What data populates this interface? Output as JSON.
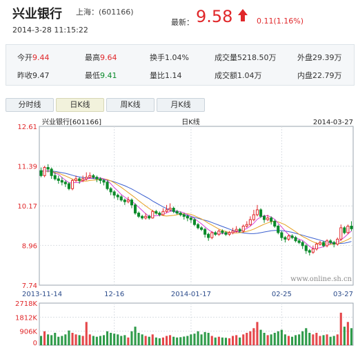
{
  "header": {
    "name": "兴业银行",
    "exchange": "上海：",
    "code": "(601166)",
    "timestamp": "2014-3-28 11:15:22",
    "last_label": "最新：",
    "last_price": "9.58",
    "change": "0.11(1.16%)"
  },
  "quote": {
    "open_label": "今开",
    "open": "9.44",
    "high_label": "最高",
    "high": "9.64",
    "turnover_label": "换手",
    "turnover": "1.04%",
    "volume_label": "成交量",
    "volume": "5218.50万",
    "outer_label": "外盘",
    "outer": "29.39万",
    "prevclose_label": "昨收",
    "prevclose": "9.47",
    "low_label": "最低",
    "low": "9.41",
    "volratio_label": "量比",
    "volratio": "1.14",
    "amount_label": "成交额",
    "amount": "1.04万",
    "inner_label": "内盘",
    "inner": "22.79万"
  },
  "tabs": [
    {
      "label": "分时线",
      "active": false
    },
    {
      "label": "日K线",
      "active": true
    },
    {
      "label": "周K线",
      "active": false
    },
    {
      "label": "月K线",
      "active": false
    }
  ],
  "colors": {
    "up": "#e0272a",
    "down": "#0a8a2a",
    "ma5": "#d63fd6",
    "ma10": "#e6a020",
    "ma20": "#3a5fcf"
  },
  "chart_data": {
    "type": "candlestick",
    "title_left": "兴业银行[601166]",
    "title_center": "日K线",
    "title_right": "2014-03-27",
    "watermark": "www.online.sh.cn",
    "y_ticks": [
      "12.61",
      "11.39",
      "10.17",
      "8.96",
      "7.74"
    ],
    "y_tick_values": [
      12.61,
      11.39,
      10.17,
      8.96,
      7.74
    ],
    "ylim": [
      7.74,
      12.61
    ],
    "x_ticks": [
      "2013-11-14",
      "12-16",
      "2014-01-17",
      "02-25",
      "03-27"
    ],
    "x_tick_index": [
      0,
      21,
      43,
      69,
      89
    ],
    "vol_ticks": [
      "2718K",
      "1812K",
      "906K",
      "0"
    ],
    "vol_tick_values": [
      2718,
      1812,
      906,
      0
    ],
    "candles": [
      [
        11.25,
        11.1,
        11.35,
        11.05,
        600
      ],
      [
        11.1,
        11.35,
        11.4,
        11.05,
        900
      ],
      [
        11.35,
        11.3,
        11.45,
        11.2,
        700
      ],
      [
        11.3,
        11.1,
        11.35,
        11.0,
        650
      ],
      [
        11.1,
        11.0,
        11.2,
        10.95,
        800
      ],
      [
        11.0,
        10.95,
        11.1,
        10.85,
        550
      ],
      [
        10.95,
        10.9,
        11.05,
        10.8,
        600
      ],
      [
        10.9,
        10.85,
        10.95,
        10.75,
        700
      ],
      [
        10.85,
        10.7,
        10.9,
        10.65,
        950
      ],
      [
        10.7,
        10.95,
        11.0,
        10.65,
        800
      ],
      [
        10.95,
        11.0,
        11.1,
        10.9,
        700
      ],
      [
        11.0,
        10.95,
        11.05,
        10.85,
        650
      ],
      [
        10.95,
        11.0,
        11.1,
        10.9,
        600
      ],
      [
        11.0,
        11.05,
        11.2,
        10.95,
        1500
      ],
      [
        11.05,
        11.1,
        11.2,
        11.0,
        700
      ],
      [
        11.1,
        11.05,
        11.15,
        11.0,
        600
      ],
      [
        11.05,
        11.0,
        11.1,
        10.9,
        550
      ],
      [
        11.0,
        10.95,
        11.05,
        10.85,
        600
      ],
      [
        10.95,
        10.9,
        11.0,
        10.8,
        650
      ],
      [
        10.9,
        10.7,
        10.95,
        10.65,
        900
      ],
      [
        10.7,
        10.6,
        10.75,
        10.5,
        800
      ],
      [
        10.6,
        10.5,
        10.65,
        10.4,
        750
      ],
      [
        10.5,
        10.45,
        10.55,
        10.35,
        700
      ],
      [
        10.45,
        10.35,
        10.5,
        10.3,
        600
      ],
      [
        10.35,
        10.3,
        10.4,
        10.2,
        650
      ],
      [
        10.3,
        10.35,
        10.45,
        10.25,
        500
      ],
      [
        10.35,
        10.2,
        10.4,
        10.1,
        900
      ],
      [
        10.2,
        9.95,
        10.25,
        9.9,
        1200
      ],
      [
        9.95,
        9.85,
        10.0,
        9.8,
        800
      ],
      [
        9.85,
        9.8,
        9.9,
        9.75,
        700
      ],
      [
        9.8,
        9.85,
        9.95,
        9.75,
        600
      ],
      [
        9.85,
        9.8,
        9.9,
        9.75,
        550
      ],
      [
        9.8,
        10.0,
        10.05,
        9.78,
        700
      ],
      [
        10.0,
        9.95,
        10.05,
        9.9,
        500
      ],
      [
        9.95,
        9.9,
        10.0,
        9.85,
        450
      ],
      [
        9.9,
        10.0,
        10.1,
        9.88,
        500
      ],
      [
        10.0,
        10.05,
        10.2,
        9.95,
        600
      ],
      [
        10.05,
        10.1,
        10.25,
        10.0,
        650
      ],
      [
        10.1,
        10.0,
        10.15,
        9.95,
        550
      ],
      [
        10.0,
        9.95,
        10.05,
        9.9,
        500
      ],
      [
        9.95,
        9.9,
        10.0,
        9.85,
        520
      ],
      [
        9.9,
        9.85,
        9.95,
        9.75,
        560
      ],
      [
        9.85,
        9.8,
        9.9,
        9.7,
        600
      ],
      [
        9.8,
        9.75,
        9.85,
        9.65,
        700
      ],
      [
        9.75,
        9.6,
        9.8,
        9.55,
        750
      ],
      [
        9.6,
        9.5,
        9.65,
        9.45,
        900
      ],
      [
        9.5,
        9.45,
        9.55,
        9.4,
        700
      ],
      [
        9.45,
        9.3,
        9.5,
        9.2,
        850
      ],
      [
        9.3,
        9.2,
        9.35,
        9.1,
        800
      ],
      [
        9.2,
        9.35,
        9.4,
        9.15,
        600
      ],
      [
        9.35,
        9.3,
        9.4,
        9.25,
        500
      ],
      [
        9.3,
        9.4,
        9.45,
        9.25,
        550
      ],
      [
        9.4,
        9.35,
        9.45,
        9.3,
        500
      ],
      [
        9.35,
        9.3,
        9.4,
        9.25,
        480
      ],
      [
        9.3,
        9.35,
        9.4,
        9.25,
        450
      ],
      [
        9.35,
        9.4,
        9.5,
        9.3,
        600
      ],
      [
        9.4,
        9.45,
        9.55,
        9.35,
        650
      ],
      [
        9.45,
        9.4,
        9.5,
        9.35,
        500
      ],
      [
        9.4,
        9.55,
        9.6,
        9.35,
        700
      ],
      [
        9.55,
        9.6,
        9.7,
        9.5,
        800
      ],
      [
        9.6,
        9.75,
        9.85,
        9.55,
        900
      ],
      [
        9.75,
        9.9,
        10.05,
        9.7,
        1100
      ],
      [
        9.9,
        10.05,
        10.2,
        9.85,
        1500
      ],
      [
        10.05,
        9.85,
        10.1,
        9.8,
        1000
      ],
      [
        9.85,
        9.75,
        9.9,
        9.65,
        800
      ],
      [
        9.75,
        9.8,
        9.9,
        9.7,
        650
      ],
      [
        9.8,
        9.7,
        9.85,
        9.6,
        700
      ],
      [
        9.7,
        9.55,
        9.75,
        9.5,
        800
      ],
      [
        9.55,
        9.35,
        9.6,
        9.3,
        900
      ],
      [
        9.35,
        9.2,
        9.4,
        9.1,
        1000
      ],
      [
        9.2,
        9.15,
        9.25,
        9.05,
        700
      ],
      [
        9.15,
        9.25,
        9.3,
        9.1,
        600
      ],
      [
        9.25,
        9.2,
        9.3,
        9.15,
        550
      ],
      [
        9.2,
        9.1,
        9.25,
        9.05,
        650
      ],
      [
        9.1,
        9.05,
        9.15,
        9.0,
        700
      ],
      [
        9.05,
        8.95,
        9.1,
        8.85,
        900
      ],
      [
        8.95,
        8.8,
        9.0,
        8.7,
        1100
      ],
      [
        8.8,
        8.75,
        8.85,
        8.65,
        800
      ],
      [
        8.75,
        8.85,
        8.95,
        8.7,
        700
      ],
      [
        8.85,
        9.0,
        9.05,
        8.8,
        800
      ],
      [
        9.0,
        9.05,
        9.1,
        8.95,
        600
      ],
      [
        9.05,
        8.95,
        9.1,
        8.9,
        650
      ],
      [
        8.95,
        9.1,
        9.15,
        8.9,
        700
      ],
      [
        9.1,
        9.05,
        9.15,
        9.0,
        550
      ],
      [
        9.05,
        9.0,
        9.1,
        8.9,
        600
      ],
      [
        9.0,
        9.15,
        9.2,
        8.95,
        700
      ],
      [
        9.15,
        9.5,
        9.6,
        9.1,
        2100
      ],
      [
        9.5,
        9.35,
        9.55,
        9.3,
        1200
      ],
      [
        9.35,
        9.55,
        9.6,
        9.3,
        1500
      ],
      [
        9.55,
        9.47,
        9.7,
        9.4,
        1100
      ]
    ],
    "ma5": [
      11.25,
      11.22,
      11.25,
      11.22,
      11.17,
      11.14,
      11.04,
      10.96,
      10.88,
      10.88,
      10.89,
      10.89,
      10.94,
      10.99,
      11.02,
      11.03,
      11.03,
      11.03,
      11.0,
      10.95,
      10.85,
      10.73,
      10.63,
      10.52,
      10.44,
      10.37,
      10.31,
      10.23,
      10.13,
      10.03,
      9.93,
      9.85,
      9.86,
      9.87,
      9.88,
      9.92,
      9.96,
      10.0,
      10.02,
      10.01,
      9.99,
      9.96,
      9.9,
      9.85,
      9.78,
      9.7,
      9.62,
      9.53,
      9.44,
      9.37,
      9.33,
      9.31,
      9.32,
      9.34,
      9.34,
      9.36,
      9.38,
      9.39,
      9.43,
      9.48,
      9.55,
      9.64,
      9.76,
      9.83,
      9.87,
      9.87,
      9.83,
      9.76,
      9.64,
      9.52,
      9.4,
      9.29,
      9.23,
      9.18,
      9.15,
      9.11,
      9.02,
      8.93,
      8.86,
      8.87,
      8.89,
      8.92,
      8.97,
      9.02,
      9.03,
      9.05,
      9.13,
      9.21,
      9.31,
      9.4
    ],
    "ma10": [
      11.25,
      11.23,
      11.24,
      11.23,
      11.2,
      11.18,
      11.13,
      11.09,
      11.04,
      10.99,
      10.97,
      10.94,
      10.93,
      10.93,
      10.95,
      10.96,
      10.97,
      10.99,
      11.0,
      10.98,
      10.94,
      10.88,
      10.81,
      10.74,
      10.66,
      10.58,
      10.5,
      10.42,
      10.33,
      10.25,
      10.17,
      10.09,
      10.02,
      9.96,
      9.91,
      9.87,
      9.86,
      9.87,
      9.88,
      9.9,
      9.92,
      9.93,
      9.93,
      9.91,
      9.87,
      9.82,
      9.77,
      9.71,
      9.64,
      9.58,
      9.52,
      9.46,
      9.42,
      9.38,
      9.36,
      9.34,
      9.34,
      9.35,
      9.37,
      9.39,
      9.42,
      9.46,
      9.51,
      9.56,
      9.61,
      9.65,
      9.68,
      9.7,
      9.68,
      9.64,
      9.59,
      9.52,
      9.45,
      9.38,
      9.3,
      9.23,
      9.18,
      9.12,
      9.07,
      9.03,
      9.0,
      8.99,
      8.99,
      8.99,
      9.0,
      9.01,
      9.05,
      9.09,
      9.14,
      9.2
    ],
    "ma20": [
      11.25,
      11.24,
      11.24,
      11.24,
      11.23,
      11.21,
      11.19,
      11.17,
      11.14,
      11.11,
      11.08,
      11.06,
      11.04,
      11.03,
      11.02,
      11.01,
      11.0,
      10.99,
      10.98,
      10.96,
      10.94,
      10.91,
      10.87,
      10.83,
      10.79,
      10.74,
      10.69,
      10.63,
      10.57,
      10.51,
      10.45,
      10.39,
      10.32,
      10.26,
      10.2,
      10.14,
      10.09,
      10.04,
      10.0,
      9.96,
      9.93,
      9.9,
      9.87,
      9.85,
      9.82,
      9.79,
      9.76,
      9.73,
      9.7,
      9.66,
      9.62,
      9.58,
      9.54,
      9.5,
      9.46,
      9.42,
      9.39,
      9.36,
      9.34,
      9.33,
      9.32,
      9.32,
      9.33,
      9.35,
      9.37,
      9.39,
      9.41,
      9.42,
      9.42,
      9.41,
      9.4,
      9.38,
      9.36,
      9.33,
      9.3,
      9.27,
      9.24,
      9.21,
      9.18,
      9.15,
      9.12,
      9.09,
      9.07,
      9.05,
      9.03,
      9.02,
      9.02,
      9.03,
      9.05,
      9.08
    ]
  }
}
